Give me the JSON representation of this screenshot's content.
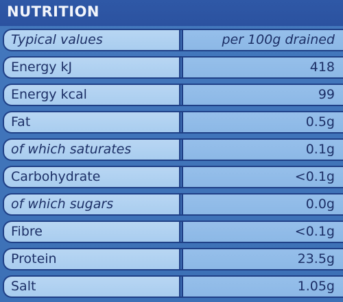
{
  "header": {
    "title": "NUTRITION"
  },
  "table": {
    "column_header": {
      "label": "Typical values",
      "value": "per 100g drained"
    },
    "rows": [
      {
        "label": "Energy kJ",
        "value": "418"
      },
      {
        "label": "Energy kcal",
        "value": "99"
      },
      {
        "label": "Fat",
        "value": "0.5g"
      },
      {
        "label": "of which saturates",
        "value": "0.1g"
      },
      {
        "label": "Carbohydrate",
        "value": "<0.1g"
      },
      {
        "label": "of which sugars",
        "value": "0.0g"
      },
      {
        "label": "Fibre",
        "value": "<0.1g"
      },
      {
        "label": "Protein",
        "value": "23.5g"
      },
      {
        "label": "Salt",
        "value": "1.05g"
      }
    ]
  },
  "colors": {
    "background": "#3e6fb4",
    "header_band": "#2b52a0",
    "label_cell": "#b8d6f3",
    "value_cell": "#96bfea",
    "text": "#1c2f66",
    "border": "#1f3f86"
  }
}
